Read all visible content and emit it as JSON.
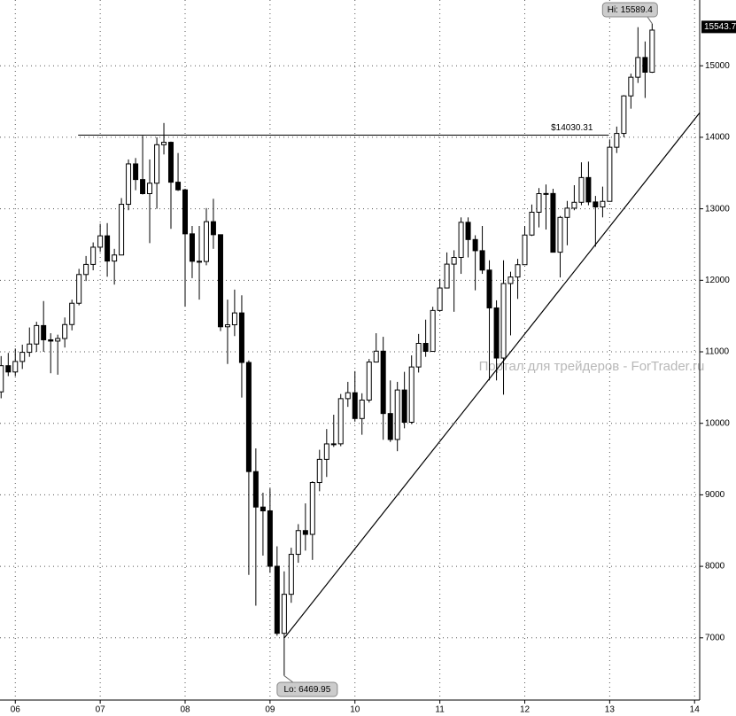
{
  "chart_data": {
    "type": "candlestick",
    "watermark": "Портал для трейдеров - ForTrader.ru",
    "x": [
      2005.833,
      2005.917,
      2006.0,
      2006.083,
      2006.167,
      2006.25,
      2006.333,
      2006.417,
      2006.5,
      2006.583,
      2006.667,
      2006.75,
      2006.833,
      2006.917,
      2007.0,
      2007.083,
      2007.167,
      2007.25,
      2007.333,
      2007.417,
      2007.5,
      2007.583,
      2007.667,
      2007.75,
      2007.833,
      2007.917,
      2008.0,
      2008.083,
      2008.167,
      2008.25,
      2008.333,
      2008.417,
      2008.5,
      2008.583,
      2008.667,
      2008.75,
      2008.833,
      2008.917,
      2009.0,
      2009.083,
      2009.167,
      2009.25,
      2009.333,
      2009.417,
      2009.5,
      2009.583,
      2009.667,
      2009.75,
      2009.833,
      2009.917,
      2010.0,
      2010.083,
      2010.167,
      2010.25,
      2010.333,
      2010.417,
      2010.5,
      2010.583,
      2010.667,
      2010.75,
      2010.833,
      2010.917,
      2011.0,
      2011.083,
      2011.167,
      2011.25,
      2011.333,
      2011.417,
      2011.5,
      2011.583,
      2011.667,
      2011.75,
      2011.833,
      2011.917,
      2012.0,
      2012.083,
      2012.167,
      2012.25,
      2012.333,
      2012.417,
      2012.5,
      2012.583,
      2012.667,
      2012.75,
      2012.833,
      2012.917,
      2013.0,
      2013.083,
      2013.167,
      2013.25,
      2013.333,
      2013.417,
      2013.5
    ],
    "open": [
      10440,
      10806,
      10718,
      10865,
      10993,
      11109,
      11367,
      11168,
      11150,
      11186,
      11381,
      11679,
      12081,
      12222,
      12463,
      12622,
      12269,
      12354,
      13063,
      13628,
      13409,
      13212,
      13358,
      13896,
      13930,
      13372,
      13265,
      12650,
      12266,
      12263,
      12820,
      12638,
      11350,
      11378,
      11544,
      10851,
      9325,
      8829,
      8776,
      8001,
      7063,
      7609,
      8168,
      8500,
      8447,
      9172,
      9496,
      9712,
      9713,
      10345,
      10428,
      10067,
      10325,
      10857,
      11009,
      10137,
      9774,
      10466,
      10015,
      10788,
      11118,
      11006,
      11578,
      11892,
      12226,
      12320,
      12811,
      12570,
      12414,
      12143,
      11614,
      10913,
      11955,
      12046,
      12218,
      12633,
      12952,
      13212,
      13214,
      12393,
      12880,
      13009,
      13091,
      13437,
      13096,
      13026,
      13104,
      13861,
      14054,
      14579,
      14840,
      15116,
      14910
    ],
    "high": [
      10940,
      10985,
      11045,
      11100,
      11340,
      11420,
      11710,
      11260,
      11240,
      11480,
      11730,
      12160,
      12340,
      12530,
      12790,
      12800,
      12440,
      13150,
      13690,
      13710,
      14020,
      13690,
      14000,
      14200,
      13940,
      13780,
      13280,
      12760,
      12760,
      13010,
      13140,
      12640,
      11730,
      11870,
      11790,
      10880,
      9650,
      9030,
      9090,
      8280,
      7930,
      8260,
      8590,
      8880,
      9190,
      9630,
      9920,
      10120,
      10410,
      10580,
      10730,
      10420,
      10900,
      11260,
      11210,
      10600,
      10580,
      10720,
      10950,
      11250,
      11450,
      11630,
      12020,
      12390,
      12420,
      12880,
      12880,
      12630,
      12760,
      12280,
      11720,
      12280,
      12120,
      12300,
      12760,
      13060,
      13290,
      13340,
      13280,
      12900,
      13110,
      13330,
      13650,
      13660,
      13180,
      13310,
      13970,
      14150,
      14590,
      14890,
      15540,
      15340,
      15589.4
    ],
    "low": [
      10350,
      10660,
      10660,
      10760,
      10930,
      11000,
      11000,
      10700,
      10680,
      11060,
      11300,
      11650,
      11990,
      12140,
      12400,
      12050,
      11940,
      12350,
      12980,
      13260,
      13200,
      12520,
      13000,
      13760,
      12720,
      13250,
      11630,
      12030,
      11730,
      12210,
      12440,
      11290,
      10830,
      11220,
      10360,
      7880,
      7450,
      8150,
      7910,
      7030,
      6469.95,
      7490,
      8050,
      8220,
      8090,
      9050,
      9250,
      9670,
      9680,
      10230,
      10030,
      9840,
      10290,
      10850,
      9770,
      9740,
      9610,
      9930,
      9990,
      10710,
      10930,
      11000,
      11560,
      11890,
      11560,
      12090,
      12320,
      11860,
      12090,
      10600,
      10600,
      10400,
      11230,
      11740,
      12220,
      12620,
      12740,
      12710,
      12390,
      12040,
      12490,
      12980,
      13050,
      13050,
      12470,
      12880,
      13100,
      13780,
      14000,
      14400,
      14760,
      14550,
      14900
    ],
    "close": [
      10806,
      10718,
      10865,
      10993,
      11109,
      11367,
      11168,
      11150,
      11186,
      11381,
      11679,
      12081,
      12222,
      12463,
      12622,
      12269,
      12354,
      13063,
      13628,
      13409,
      13212,
      13358,
      13896,
      13930,
      13372,
      13265,
      12650,
      12266,
      12263,
      12820,
      12638,
      11350,
      11378,
      11544,
      10851,
      9325,
      8829,
      8776,
      8001,
      7063,
      7609,
      8168,
      8500,
      8447,
      9172,
      9496,
      9712,
      9713,
      10345,
      10428,
      10067,
      10325,
      10857,
      11009,
      10137,
      9774,
      10466,
      10015,
      10788,
      11118,
      11006,
      11578,
      11892,
      12226,
      12320,
      12811,
      12570,
      12414,
      12143,
      11614,
      10913,
      11955,
      12046,
      12218,
      12633,
      12952,
      13212,
      13214,
      12393,
      12880,
      13009,
      13091,
      13437,
      13096,
      13026,
      13104,
      13861,
      14054,
      14579,
      14840,
      15116,
      14910,
      15499
    ],
    "xlim": [
      2005.82,
      2014.06
    ],
    "xticks": [
      {
        "value": 2006,
        "label": "06"
      },
      {
        "value": 2007,
        "label": "07"
      },
      {
        "value": 2008,
        "label": "08"
      },
      {
        "value": 2009,
        "label": "09"
      },
      {
        "value": 2010,
        "label": "10"
      },
      {
        "value": 2011,
        "label": "11"
      },
      {
        "value": 2012,
        "label": "12"
      },
      {
        "value": 2013,
        "label": "13"
      },
      {
        "value": 2014,
        "label": "14"
      }
    ],
    "ylim": [
      6130,
      15920
    ],
    "yticks": [
      7000,
      8000,
      9000,
      10000,
      11000,
      12000,
      13000,
      14000,
      15000
    ],
    "grid": true,
    "resistance": {
      "value": 14030.31,
      "label": "$14030.31",
      "x": [
        2006.74,
        2012.99
      ]
    },
    "trendline": {
      "x": [
        2009.17,
        2014.06
      ],
      "y": [
        7000,
        14343
      ]
    },
    "hi_label": "Hi: 15589.4",
    "lo_label": "Lo: 6469.95",
    "last_price": 15543.7
  }
}
